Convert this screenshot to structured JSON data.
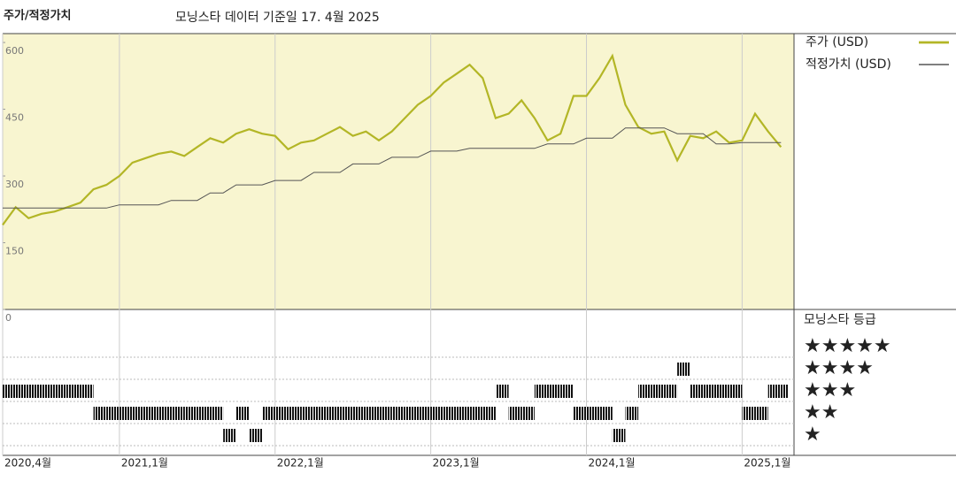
{
  "chart_data": {
    "type": "line",
    "title": "주가/적정가치",
    "subtitle": "모닝스타 데이터 기준일 17. 4월 2025",
    "x": [
      "2020-04",
      "2020-05",
      "2020-06",
      "2020-07",
      "2020-08",
      "2020-09",
      "2020-10",
      "2020-11",
      "2020-12",
      "2021-01",
      "2021-02",
      "2021-03",
      "2021-04",
      "2021-05",
      "2021-06",
      "2021-07",
      "2021-08",
      "2021-09",
      "2021-10",
      "2021-11",
      "2021-12",
      "2022-01",
      "2022-02",
      "2022-03",
      "2022-04",
      "2022-05",
      "2022-06",
      "2022-07",
      "2022-08",
      "2022-09",
      "2022-10",
      "2022-11",
      "2022-12",
      "2023-01",
      "2023-02",
      "2023-03",
      "2023-04",
      "2023-05",
      "2023-06",
      "2023-07",
      "2023-08",
      "2023-09",
      "2023-10",
      "2023-11",
      "2023-12",
      "2024-01",
      "2024-02",
      "2024-03",
      "2024-04",
      "2024-05",
      "2024-06",
      "2024-07",
      "2024-08",
      "2024-09",
      "2024-10",
      "2024-11",
      "2024-12",
      "2025-01",
      "2025-02",
      "2025-03",
      "2025-04"
    ],
    "series": [
      {
        "name": "주가 (USD)",
        "color": "#b3b626",
        "width": 2.2,
        "values": [
          190,
          230,
          205,
          215,
          220,
          230,
          240,
          270,
          280,
          300,
          330,
          340,
          350,
          355,
          345,
          365,
          385,
          375,
          395,
          405,
          395,
          390,
          360,
          375,
          380,
          395,
          410,
          390,
          400,
          380,
          400,
          430,
          460,
          480,
          510,
          530,
          550,
          520,
          430,
          440,
          470,
          430,
          380,
          395,
          480,
          480,
          520,
          570,
          460,
          410,
          395,
          400,
          335,
          390,
          385,
          400,
          375,
          380,
          440,
          400,
          365
        ]
      },
      {
        "name": "적정가치 (USD)",
        "color": "#555555",
        "width": 1,
        "values": [
          228,
          228,
          228,
          228,
          228,
          228,
          228,
          228,
          228,
          235,
          235,
          235,
          235,
          245,
          245,
          245,
          262,
          262,
          280,
          280,
          280,
          290,
          290,
          290,
          308,
          308,
          308,
          327,
          327,
          327,
          342,
          342,
          342,
          356,
          356,
          356,
          362,
          362,
          362,
          362,
          362,
          362,
          372,
          372,
          372,
          385,
          385,
          385,
          408,
          408,
          408,
          408,
          395,
          395,
          395,
          372,
          372,
          375,
          375,
          375,
          375
        ]
      }
    ],
    "xlim": [
      "2020-04",
      "2025-05"
    ],
    "xticks": [
      {
        "value": "2020-04",
        "label": "2020,4월"
      },
      {
        "value": "2021-01",
        "label": "2021,1월"
      },
      {
        "value": "2022-01",
        "label": "2022,1월"
      },
      {
        "value": "2023-01",
        "label": "2023,1월"
      },
      {
        "value": "2024-01",
        "label": "2024,1월"
      },
      {
        "value": "2025-01",
        "label": "2025,1월"
      }
    ],
    "ylim": [
      0,
      620
    ],
    "yticks": [
      0,
      150,
      300,
      450,
      600
    ],
    "background": "#f8f5d0",
    "rating": {
      "title": "모닝스타 등급",
      "levels": [
        {
          "value": 5,
          "label": "★★★★★"
        },
        {
          "value": 4,
          "label": "★★★★"
        },
        {
          "value": 3,
          "label": "★★★"
        },
        {
          "value": 2,
          "label": "★★"
        },
        {
          "value": 1,
          "label": "★"
        }
      ],
      "values": [
        3,
        3,
        3,
        3,
        3,
        3,
        3,
        2,
        2,
        2,
        2,
        2,
        2,
        2,
        2,
        2,
        2,
        1,
        2,
        1,
        2,
        2,
        2,
        2,
        2,
        2,
        2,
        2,
        2,
        2,
        2,
        2,
        2,
        2,
        2,
        2,
        2,
        2,
        3,
        2,
        2,
        3,
        3,
        3,
        2,
        2,
        2,
        1,
        2,
        3,
        3,
        3,
        4,
        3,
        3,
        3,
        3,
        2,
        2,
        3,
        3
      ]
    }
  }
}
